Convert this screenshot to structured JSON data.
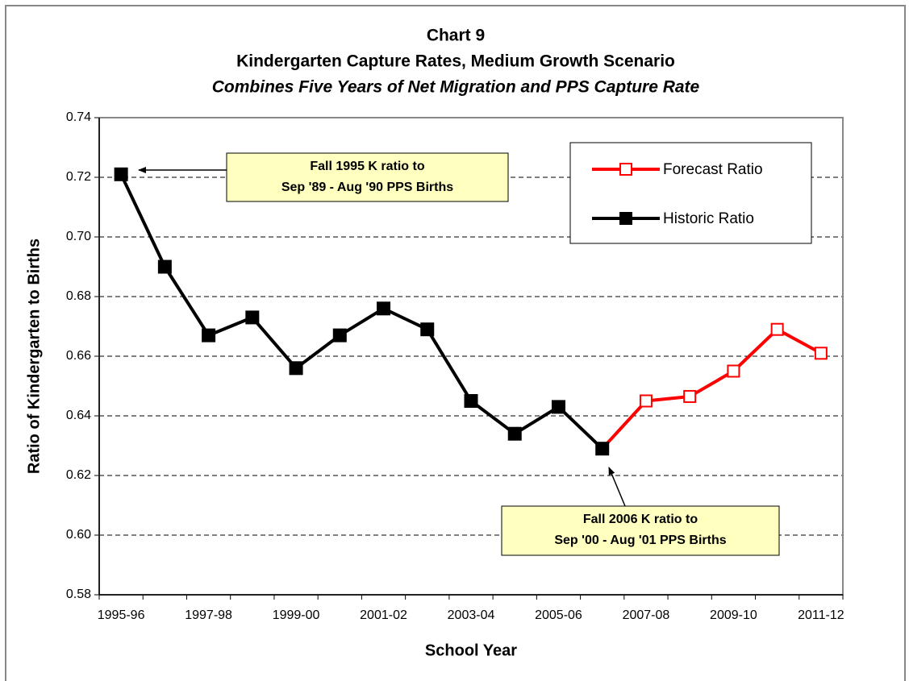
{
  "chart_data": {
    "type": "line",
    "title": "Chart 9",
    "subtitle": "Kindergarten Capture Rates, Medium Growth Scenario",
    "subtitle2": "Combines Five Years of Net Migration and PPS Capture Rate",
    "x_label": "School Year",
    "y_label": "Ratio of Kindergarten to Births",
    "categories": [
      "1995-96",
      null,
      "1997-98",
      null,
      "1999-00",
      null,
      "2001-02",
      null,
      "2003-04",
      null,
      "2005-06",
      null,
      "2007-08",
      null,
      "2009-10",
      null,
      "2011-12"
    ],
    "series": [
      {
        "name": "Forecast Ratio",
        "color": "#ff0000",
        "marker": "hollow-square",
        "values": [
          null,
          null,
          null,
          null,
          null,
          null,
          null,
          null,
          null,
          null,
          null,
          0.629,
          0.645,
          0.6465,
          0.655,
          0.669,
          0.661
        ]
      },
      {
        "name": "Historic Ratio",
        "color": "#000000",
        "marker": "filled-square",
        "values": [
          0.721,
          0.69,
          0.667,
          0.673,
          0.656,
          0.667,
          0.676,
          0.669,
          0.645,
          0.634,
          0.643,
          0.629,
          null,
          null,
          null,
          null,
          null
        ]
      }
    ],
    "ylim": [
      0.58,
      0.74
    ],
    "yticks": [
      0.58,
      {
        "value": 0.6,
        "label": "0.60"
      },
      0.62,
      0.64,
      0.66,
      0.68,
      {
        "value": 0.7,
        "label": "0.70"
      },
      0.72,
      0.74
    ],
    "grid": true,
    "legend": "upper right",
    "annotations": [
      {
        "lines": [
          "Fall 1995 K ratio to",
          "Sep '89 - Aug '90 PPS Births"
        ]
      },
      {
        "lines": [
          "Fall 2006 K ratio to",
          "Sep '00 - Aug '01 PPS Births"
        ]
      }
    ]
  }
}
